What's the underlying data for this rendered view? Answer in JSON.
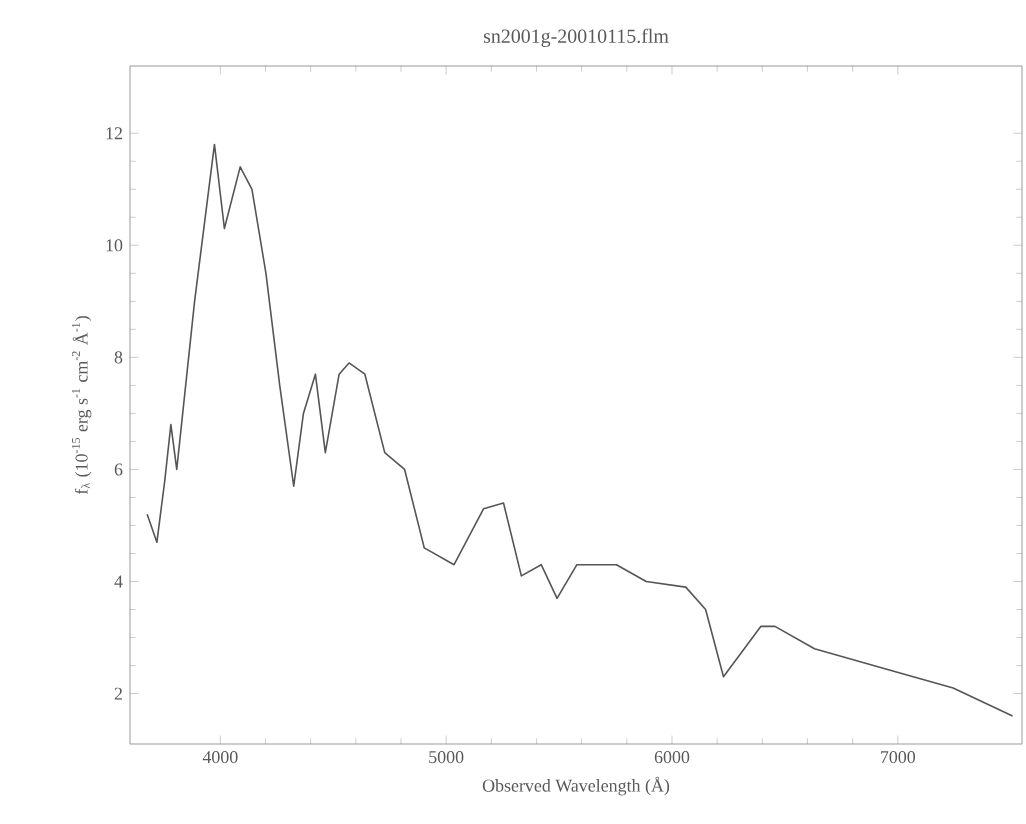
{
  "chart_data": {
    "type": "line",
    "title": "sn2001g-20010115.flm",
    "xlabel": "Observed Wavelength (Å)",
    "ylabel": "f$_{λ}$ (10$^{-15}$ erg s$^{-1}$ cm$^{-2}$ Å$^{-1}$)",
    "xlim": [
      3600,
      7550
    ],
    "ylim": [
      1.1,
      13.2
    ],
    "xticks": [
      4000,
      5000,
      6000,
      7000
    ],
    "yticks": [
      2,
      4,
      6,
      8,
      10,
      12
    ],
    "grid": false,
    "line_style": "solid",
    "series": [
      {
        "color": "#555555",
        "x": [
          3676,
          3719,
          3754,
          3781,
          3807,
          3886,
          3974,
          4018,
          4088,
          4140,
          4202,
          4263,
          4325,
          4368,
          4421,
          4465,
          4526,
          4570,
          4640,
          4728,
          4816,
          4903,
          5035,
          5166,
          5254,
          5333,
          5421,
          5491,
          5579,
          5754,
          5886,
          6061,
          6149,
          6228,
          6394,
          6456,
          6631,
          6982,
          7245,
          7508
        ],
        "values": [
          5.2,
          4.7,
          5.8,
          6.8,
          6.0,
          9.0,
          11.8,
          10.3,
          11.4,
          11.0,
          9.5,
          7.5,
          5.7,
          7.0,
          7.7,
          6.3,
          7.7,
          7.9,
          7.7,
          6.3,
          6.0,
          4.6,
          4.3,
          5.3,
          5.4,
          4.1,
          4.3,
          3.7,
          4.3,
          4.3,
          4.0,
          3.9,
          3.5,
          2.3,
          3.2,
          3.2,
          2.8,
          2.4,
          2.1,
          1.6
        ]
      }
    ]
  }
}
